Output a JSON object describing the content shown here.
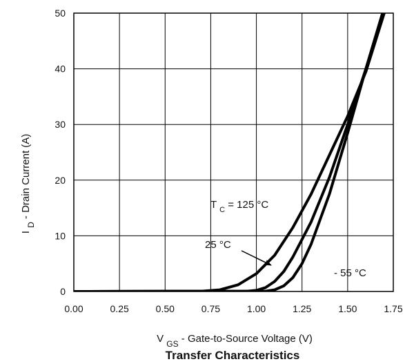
{
  "chart_data": {
    "type": "line",
    "title": "Transfer Characteristics",
    "xlabel": {
      "main": "V",
      "sub": "GS",
      "rest": "  -  Gate-to-Source Voltage (V)"
    },
    "ylabel": {
      "main": "I",
      "sub": "D",
      "rest": "  -   Drain Current (A)"
    },
    "xlim": [
      0,
      1.75
    ],
    "ylim": [
      0,
      50
    ],
    "xticks": [
      "0.00",
      "0.25",
      "0.50",
      "0.75",
      "1.00",
      "1.25",
      "1.50",
      "1.75"
    ],
    "yticks": [
      "0",
      "10",
      "20",
      "30",
      "40",
      "50"
    ],
    "grid": true,
    "series": [
      {
        "name": "TC = 125 °C",
        "x": [
          0,
          0.7,
          0.8,
          0.9,
          1.0,
          1.1,
          1.2,
          1.3,
          1.4,
          1.5,
          1.6,
          1.7
        ],
        "y": [
          0,
          0.05,
          0.3,
          1.2,
          3.2,
          6.5,
          11.5,
          17.5,
          24.5,
          31.5,
          39.5,
          50
        ]
      },
      {
        "name": "25 °C",
        "x": [
          0,
          0.95,
          1.0,
          1.05,
          1.1,
          1.15,
          1.2,
          1.3,
          1.4,
          1.5,
          1.6,
          1.7
        ],
        "y": [
          0,
          0.05,
          0.2,
          0.7,
          1.8,
          3.6,
          6.2,
          12.5,
          20.5,
          30.0,
          40.0,
          50
        ]
      },
      {
        "name": "- 55 °C",
        "x": [
          0,
          1.05,
          1.1,
          1.15,
          1.2,
          1.25,
          1.3,
          1.4,
          1.5,
          1.6,
          1.7
        ],
        "y": [
          0,
          0.05,
          0.3,
          1.0,
          2.5,
          5.0,
          8.5,
          17.5,
          28.5,
          40.0,
          51
        ]
      }
    ],
    "annotations": {
      "tc125": {
        "main": "T",
        "sub": "C",
        "rest": " = 125 °C"
      },
      "t25": "25 °C",
      "tm55": "- 55  °C"
    }
  }
}
